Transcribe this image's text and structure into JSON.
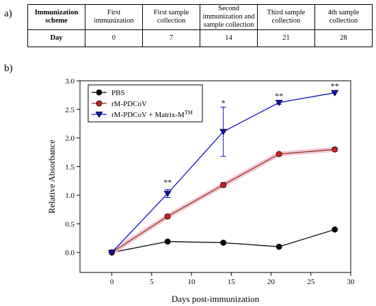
{
  "panel_labels": {
    "a": "a)",
    "b": "b)"
  },
  "schedule_table": {
    "rows": [
      [
        "Immunization scheme",
        "First immunization",
        "First sample collection",
        "Second immunization and sample collection",
        "Third sample collection",
        "4th sample collection"
      ],
      [
        "Day",
        "0",
        "7",
        "14",
        "21",
        "28"
      ]
    ]
  },
  "chart_data": {
    "type": "line",
    "title": "",
    "xlabel": "Days post-immunization",
    "ylabel": "Relative Absorbance",
    "xlim": [
      -4,
      30
    ],
    "ylim": [
      -0.35,
      3.0
    ],
    "xticks": [
      0,
      5,
      10,
      15,
      20,
      25,
      30
    ],
    "yticks": [
      0.0,
      0.5,
      1.0,
      1.5,
      2.0,
      2.5,
      3.0
    ],
    "ytick_labels": [
      "0.0",
      "0.5",
      "1.0",
      "1.5",
      "2.0",
      "2.5",
      "3.0"
    ],
    "grid": false,
    "legend_position": "top-left",
    "x": [
      0,
      7,
      14,
      21,
      28
    ],
    "series": [
      {
        "name": "PBS",
        "color": "#000000",
        "marker": "circle",
        "values": [
          0.0,
          0.19,
          0.17,
          0.1,
          0.4
        ],
        "errors": [
          0.01,
          0.02,
          0.02,
          0.01,
          0.02
        ]
      },
      {
        "name": "rM-PDCoV",
        "color": "#d42020",
        "line_color": "#8b3a1a",
        "marker": "circle",
        "values": [
          0.0,
          0.63,
          1.18,
          1.72,
          1.8
        ],
        "errors": [
          0.01,
          0.03,
          0.04,
          0.02,
          0.03
        ]
      },
      {
        "name": "rM-PDCoV + Matrix-M",
        "name_sup": "TM",
        "color": "#1010c8",
        "marker": "triangle-down",
        "values": [
          0.0,
          1.03,
          2.11,
          2.62,
          2.79
        ],
        "errors": [
          0.01,
          0.07,
          0.43,
          0.03,
          0.01
        ]
      }
    ],
    "annotations": [
      {
        "x": 7,
        "y": 1.18,
        "text": "**"
      },
      {
        "x": 14,
        "y": 2.57,
        "text": "*"
      },
      {
        "x": 21,
        "y": 2.69,
        "text": "**"
      },
      {
        "x": 28,
        "y": 2.86,
        "text": "**"
      }
    ]
  }
}
